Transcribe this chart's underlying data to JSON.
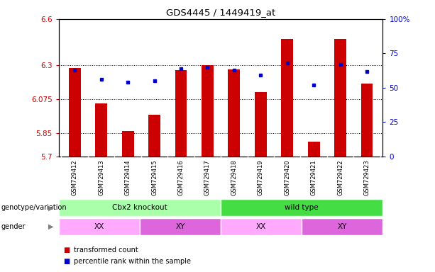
{
  "title": "GDS4445 / 1449419_at",
  "samples": [
    "GSM729412",
    "GSM729413",
    "GSM729414",
    "GSM729415",
    "GSM729416",
    "GSM729417",
    "GSM729418",
    "GSM729419",
    "GSM729420",
    "GSM729421",
    "GSM729422",
    "GSM729423"
  ],
  "transformed_count": [
    6.28,
    6.045,
    5.865,
    5.975,
    6.265,
    6.3,
    6.27,
    6.12,
    6.47,
    5.795,
    6.47,
    6.175
  ],
  "percentile_rank": [
    63,
    56,
    54,
    55,
    64,
    65,
    63,
    59,
    68,
    52,
    67,
    62
  ],
  "ymin": 5.7,
  "ymax": 6.6,
  "yticks": [
    5.7,
    5.85,
    6.075,
    6.3,
    6.6
  ],
  "ytick_labels": [
    "5.7",
    "5.85",
    "6.075",
    "6.3",
    "6.6"
  ],
  "right_yticks_pct": [
    0,
    25,
    50,
    75,
    100
  ],
  "right_ytick_labels": [
    "0",
    "25",
    "50",
    "75",
    "100%"
  ],
  "bar_color": "#cc0000",
  "dot_color": "#0000cc",
  "genotype_groups": [
    {
      "label": "Cbx2 knockout",
      "start": 0,
      "end": 5,
      "color": "#aaffaa"
    },
    {
      "label": "wild type",
      "start": 6,
      "end": 11,
      "color": "#44dd44"
    }
  ],
  "gender_groups": [
    {
      "label": "XX",
      "start": 0,
      "end": 2,
      "color": "#ffaaff"
    },
    {
      "label": "XY",
      "start": 3,
      "end": 5,
      "color": "#dd66dd"
    },
    {
      "label": "XX",
      "start": 6,
      "end": 8,
      "color": "#ffaaff"
    },
    {
      "label": "XY",
      "start": 9,
      "end": 11,
      "color": "#dd66dd"
    }
  ],
  "legend_items": [
    {
      "label": "transformed count",
      "color": "#cc0000"
    },
    {
      "label": "percentile rank within the sample",
      "color": "#0000cc"
    }
  ],
  "left_tick_color": "#cc0000",
  "right_tick_color": "#0000cc",
  "bg_color": "#ffffff",
  "label_area_bg": "#dddddd",
  "grid_color": "#000000",
  "arrow_label_genotype": "genotype/variation",
  "arrow_label_gender": "gender"
}
